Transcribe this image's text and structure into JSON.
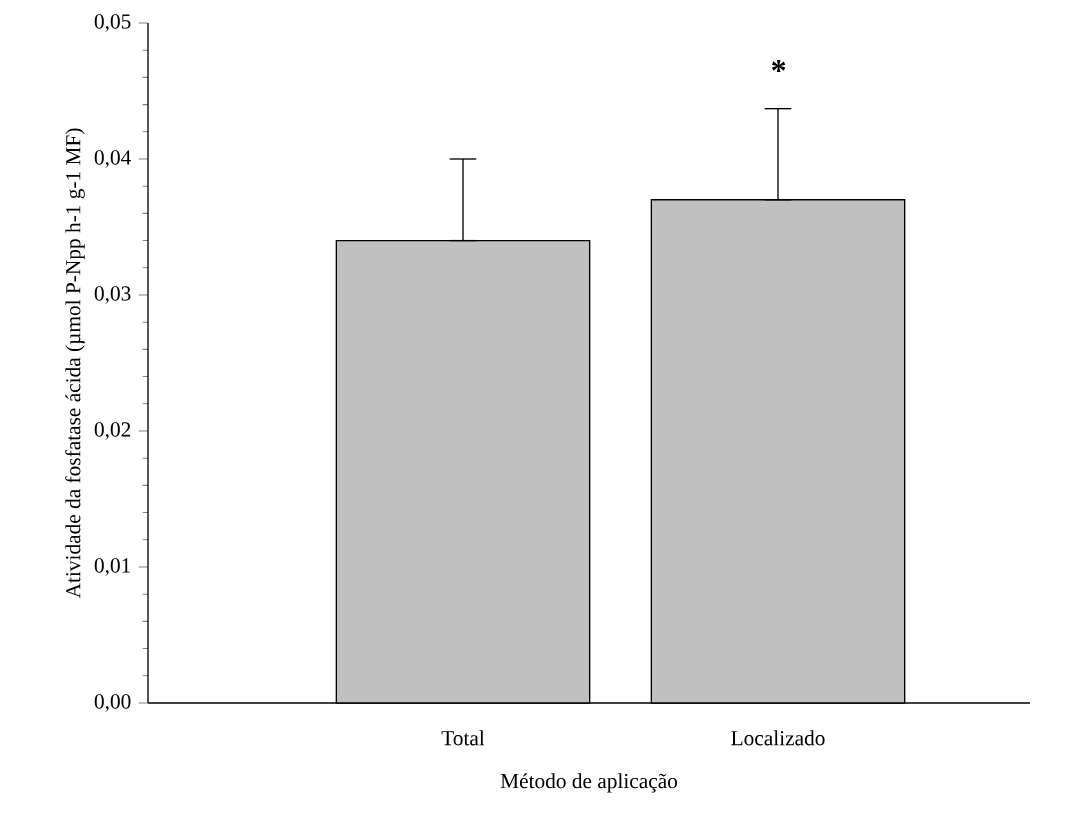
{
  "chart_data": {
    "type": "bar",
    "xlabel": "Método de aplicação",
    "ylabel": "Atividade da fosfatase ácida (µmol P-Npp h-1 g-1 MF)",
    "categories": [
      "Total",
      "Localizado"
    ],
    "values": [
      0.034,
      0.037
    ],
    "color": "#c0c0c0",
    "errors": [
      [
        0.034,
        0.04
      ],
      [
        0.037,
        0.0437
      ]
    ],
    "ylim": [
      0,
      0.05
    ],
    "yticks": [
      {
        "value": 0,
        "label": "0,00"
      },
      {
        "value": 0.01,
        "label": "0,01"
      },
      {
        "value": 0.02,
        "label": "0,02"
      },
      {
        "value": 0.03,
        "label": "0,03"
      },
      {
        "value": 0.04,
        "label": "0,04"
      },
      {
        "value": 0.05,
        "label": "0,05"
      }
    ],
    "annotations": [
      "*"
    ]
  }
}
